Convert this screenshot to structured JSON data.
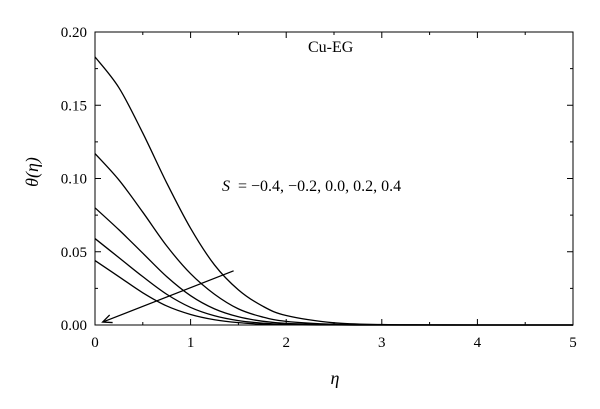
{
  "chart_data": {
    "type": "line",
    "xlabel": "η",
    "ylabel": "θ(η)",
    "xlim": [
      0,
      5
    ],
    "ylim": [
      0,
      0.2
    ],
    "xticks": [
      0,
      1,
      2,
      3,
      4,
      5
    ],
    "yticks": [
      0,
      0.05,
      0.1,
      0.15,
      0.2
    ],
    "xtick_labels": [
      "0",
      "1",
      "2",
      "3",
      "4",
      "5"
    ],
    "ytick_labels": [
      "0.00",
      "0.05",
      "0.10",
      "0.15",
      "0.20"
    ],
    "grid": false,
    "annotations": {
      "fluid_label": "Cu-EG",
      "parameter_label": "S = −0.4, −0.2, 0.0, 0.2, 0.4",
      "parameter_symbol": "S",
      "parameter_values": "= −0.4, −0.2, 0.0, 0.2, 0.4"
    },
    "x": [
      0,
      0.25,
      0.5,
      0.75,
      1.0,
      1.25,
      1.5,
      1.75,
      2.0,
      2.5,
      3.0,
      3.5,
      4.0,
      5.0
    ],
    "series": [
      {
        "values": [
          0.183,
          0.162,
          0.131,
          0.097,
          0.066,
          0.041,
          0.024,
          0.013,
          0.0065,
          0.0015,
          0.0003,
          0.0001,
          0.0,
          0.0
        ]
      },
      {
        "values": [
          0.117,
          0.099,
          0.077,
          0.054,
          0.035,
          0.021,
          0.011,
          0.0055,
          0.0025,
          0.0005,
          0.0001,
          0.0,
          0.0,
          0.0
        ]
      },
      {
        "values": [
          0.08,
          0.065,
          0.049,
          0.033,
          0.02,
          0.011,
          0.0056,
          0.0026,
          0.0011,
          0.0002,
          0.0,
          0.0,
          0.0,
          0.0
        ]
      },
      {
        "values": [
          0.059,
          0.046,
          0.033,
          0.021,
          0.012,
          0.0063,
          0.003,
          0.0013,
          0.0005,
          0.0001,
          0.0,
          0.0,
          0.0,
          0.0
        ]
      },
      {
        "values": [
          0.044,
          0.033,
          0.022,
          0.013,
          0.0072,
          0.0036,
          0.0016,
          0.0006,
          0.0002,
          0.0,
          0.0,
          0.0,
          0.0,
          0.0
        ]
      }
    ],
    "arrow": {
      "from": [
        1.45,
        0.037
      ],
      "to": [
        0.08,
        0.002
      ]
    },
    "line_color": "#000000"
  }
}
